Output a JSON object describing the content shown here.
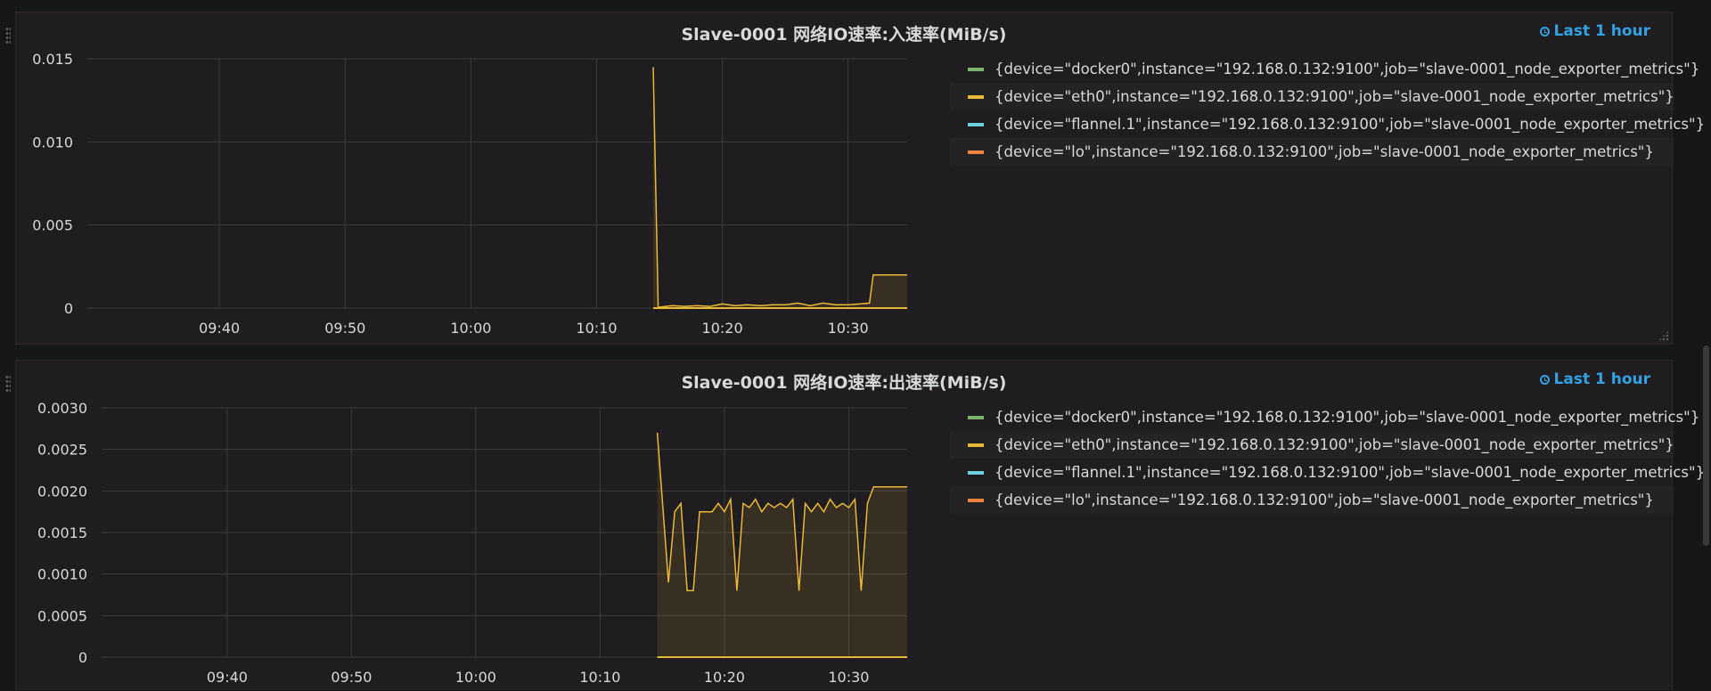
{
  "time_range_label": "Last 1 hour",
  "colors": {
    "docker0": "#7eb26d",
    "eth0": "#eab839",
    "flannel": "#6ed0e0",
    "lo": "#ef843c",
    "accent": "#33a2e5"
  },
  "chart_data": [
    {
      "type": "area",
      "title": "Slave-0001 网络IO速率:入速率(MiB/s)",
      "x_tick_labels": [
        "09:40",
        "09:50",
        "10:00",
        "10:10",
        "10:20",
        "10:30"
      ],
      "x_tick_minutes": [
        580,
        590,
        600,
        610,
        620,
        630
      ],
      "xlim_minutes": [
        569.5,
        634.7
      ],
      "ylim": [
        0,
        0.015
      ],
      "y_ticks": [
        0,
        0.005,
        0.01,
        0.015
      ],
      "y_tick_labels": [
        "0",
        "0.005",
        "0.010",
        "0.015"
      ],
      "grid": true,
      "legend_position": "right",
      "series": [
        {
          "name": "{device=\"docker0\",instance=\"192.168.0.132:9100\",job=\"slave-0001_node_exporter_metrics\"}",
          "color_key": "docker0",
          "x": [],
          "y": []
        },
        {
          "name": "{device=\"eth0\",instance=\"192.168.0.132:9100\",job=\"slave-0001_node_exporter_metrics\"}",
          "color_key": "eth0",
          "x": [
            614.5,
            614.9,
            615.5,
            616.0,
            617.0,
            618.0,
            619.0,
            620.0,
            621.0,
            622.0,
            623.0,
            624.0,
            625.0,
            626.0,
            627.0,
            628.0,
            629.0,
            630.0,
            631.0,
            631.7,
            632.0,
            634.7
          ],
          "y": [
            0.0145,
            5e-05,
            0.0001,
            0.00015,
            0.0001,
            0.00015,
            0.0001,
            0.00025,
            0.00015,
            0.0002,
            0.00015,
            0.0002,
            0.0002,
            0.0003,
            0.00015,
            0.0003,
            0.0002,
            0.0002,
            0.00025,
            0.0003,
            0.002,
            0.002
          ]
        },
        {
          "name": "{device=\"flannel.1\",instance=\"192.168.0.132:9100\",job=\"slave-0001_node_exporter_metrics\"}",
          "color_key": "flannel",
          "x": [],
          "y": []
        },
        {
          "name": "{device=\"lo\",instance=\"192.168.0.132:9100\",job=\"slave-0001_node_exporter_metrics\"}",
          "color_key": "lo",
          "x": [],
          "y": []
        }
      ]
    },
    {
      "type": "area",
      "title": "Slave-0001 网络IO速率:出速率(MiB/s)",
      "x_tick_labels": [
        "09:40",
        "09:50",
        "10:00",
        "10:10",
        "10:20",
        "10:30"
      ],
      "x_tick_minutes": [
        580,
        590,
        600,
        610,
        620,
        630
      ],
      "xlim_minutes": [
        569.9,
        634.7
      ],
      "ylim": [
        0,
        0.003
      ],
      "y_ticks": [
        0,
        0.0005,
        0.001,
        0.0015,
        0.002,
        0.0025,
        0.003
      ],
      "y_tick_labels": [
        "0",
        "0.0005",
        "0.0010",
        "0.0015",
        "0.0020",
        "0.0025",
        "0.0030"
      ],
      "grid": true,
      "legend_position": "right",
      "series": [
        {
          "name": "{device=\"docker0\",instance=\"192.168.0.132:9100\",job=\"slave-0001_node_exporter_metrics\"}",
          "color_key": "docker0",
          "x": [],
          "y": []
        },
        {
          "name": "{device=\"eth0\",instance=\"192.168.0.132:9100\",job=\"slave-0001_node_exporter_metrics\"}",
          "color_key": "eth0",
          "x": [
            614.6,
            615.5,
            616.0,
            616.5,
            617.0,
            617.5,
            618.0,
            618.5,
            619.0,
            619.5,
            620.0,
            620.5,
            621.0,
            621.5,
            622.0,
            622.5,
            623.0,
            623.5,
            624.0,
            624.5,
            625.0,
            625.5,
            626.0,
            626.5,
            627.0,
            627.5,
            628.0,
            628.5,
            629.0,
            629.5,
            630.0,
            630.5,
            631.0,
            631.5,
            632.0,
            634.7
          ],
          "y": [
            0.0027,
            0.0009,
            0.00175,
            0.00185,
            0.0008,
            0.0008,
            0.00175,
            0.00175,
            0.00175,
            0.00185,
            0.00175,
            0.0019,
            0.0008,
            0.00185,
            0.0018,
            0.0019,
            0.00175,
            0.00185,
            0.0018,
            0.00185,
            0.0018,
            0.0019,
            0.0008,
            0.00185,
            0.00175,
            0.00185,
            0.00175,
            0.0019,
            0.0018,
            0.00185,
            0.0018,
            0.0019,
            0.0008,
            0.00185,
            0.00205,
            0.00205
          ]
        },
        {
          "name": "{device=\"flannel.1\",instance=\"192.168.0.132:9100\",job=\"slave-0001_node_exporter_metrics\"}",
          "color_key": "flannel",
          "x": [],
          "y": []
        },
        {
          "name": "{device=\"lo\",instance=\"192.168.0.132:9100\",job=\"slave-0001_node_exporter_metrics\"}",
          "color_key": "lo",
          "x": [
            614.6,
            634.7
          ],
          "y": [
            0,
            0
          ]
        }
      ]
    }
  ]
}
